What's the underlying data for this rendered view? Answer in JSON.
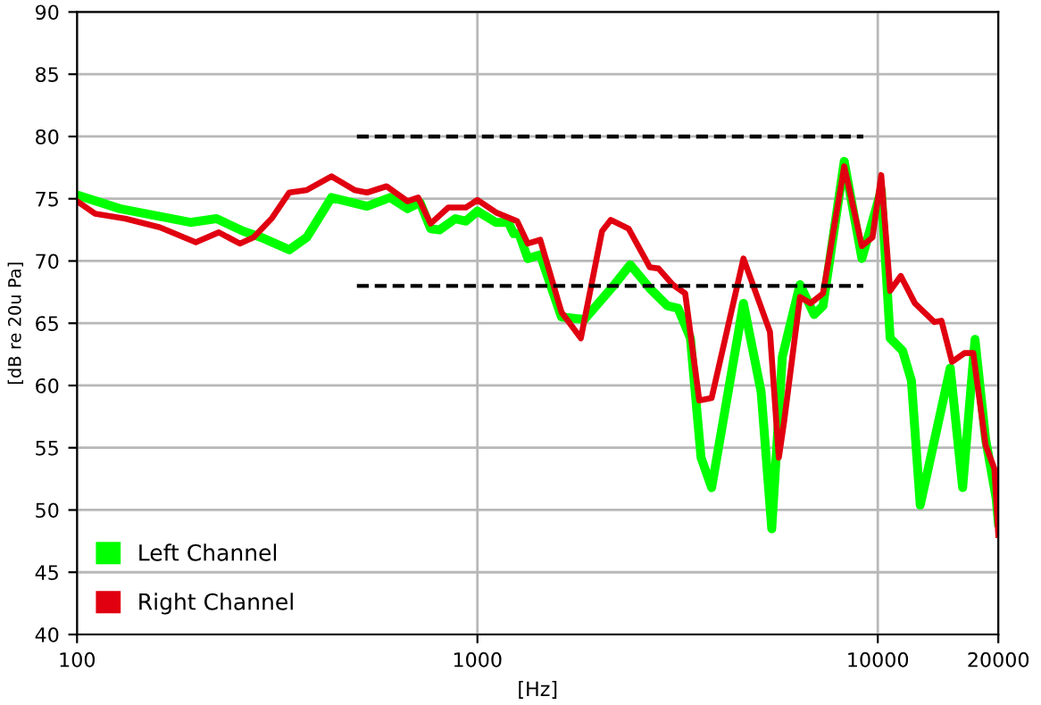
{
  "chart_data": {
    "type": "line",
    "xlabel": "[Hz]",
    "ylabel": "[dB re 20u Pa]",
    "log": "x",
    "xlim": [
      100,
      20000
    ],
    "xticks": [
      100,
      1000,
      10000,
      20000
    ],
    "ylim": [
      40,
      90
    ],
    "yticks": [
      40,
      45,
      50,
      55,
      60,
      65,
      70,
      75,
      80,
      85,
      90
    ],
    "grid": true,
    "legend": "bottom left",
    "series": [
      {
        "name": "Left Channel",
        "color": "#00ff00",
        "x": [
          100,
          128,
          192,
          223,
          260,
          288,
          339,
          375,
          432,
          530,
          605,
          669,
          719,
          764,
          804,
          881,
          936,
          1000,
          1113,
          1147,
          1195,
          1232,
          1270,
          1336,
          1435,
          1621,
          1850,
          2199,
          2409,
          2695,
          2983,
          3170,
          3404,
          3619,
          3846,
          4618,
          5112,
          5434,
          5775,
          6393,
          6934,
          7298,
          8245,
          9127,
          10200,
          10737,
          11530,
          12132,
          12764,
          15170,
          16290,
          17490,
          18590,
          19760,
          20000
        ],
        "values": [
          75.3,
          74.2,
          73.1,
          73.4,
          72.4,
          71.9,
          70.9,
          71.9,
          75.1,
          74.4,
          75.1,
          74.2,
          74.7,
          72.6,
          72.5,
          73.4,
          73.2,
          74.0,
          73.1,
          73.1,
          73.1,
          72.2,
          72.2,
          70.2,
          70.5,
          65.5,
          65.3,
          68.1,
          69.7,
          67.8,
          66.4,
          66.2,
          63.8,
          54.2,
          51.8,
          66.6,
          59.5,
          48.5,
          62.3,
          68.1,
          65.7,
          66.4,
          78.0,
          70.2,
          75.7,
          63.8,
          62.8,
          60.4,
          50.4,
          61.4,
          51.8,
          63.7,
          55.7,
          50.9,
          49.0
        ]
      },
      {
        "name": "Right Channel",
        "color": "#e00010",
        "x": [
          100,
          111,
          132,
          161,
          198,
          226,
          255,
          276,
          306,
          339,
          375,
          432,
          493,
          530,
          593,
          669,
          711,
          764,
          846,
          936,
          1000,
          1113,
          1257,
          1336,
          1435,
          1621,
          1813,
          2048,
          2154,
          2385,
          2695,
          2834,
          3075,
          3303,
          3582,
          3846,
          4618,
          5379,
          5660,
          5834,
          6393,
          6795,
          7298,
          8245,
          9127,
          9700,
          10200,
          10737,
          11413,
          12380,
          13847,
          14420,
          15325,
          16455,
          17315,
          18590,
          19560,
          20000
        ],
        "values": [
          74.8,
          73.8,
          73.4,
          72.7,
          71.5,
          72.3,
          71.4,
          71.9,
          73.4,
          75.5,
          75.7,
          76.8,
          75.7,
          75.5,
          76.0,
          74.8,
          75.1,
          73.0,
          74.3,
          74.3,
          74.9,
          73.9,
          73.2,
          71.4,
          71.7,
          65.9,
          63.8,
          72.4,
          73.3,
          72.6,
          69.5,
          69.4,
          68.1,
          67.4,
          58.8,
          59.0,
          70.2,
          64.3,
          54.2,
          57.1,
          67.1,
          66.6,
          67.4,
          77.6,
          71.2,
          71.9,
          76.9,
          67.6,
          68.8,
          66.6,
          65.1,
          65.2,
          61.9,
          62.6,
          62.6,
          55.2,
          53.3,
          48.0
        ]
      },
      {
        "color": "#000000",
        "line_style": "dashed",
        "x": [
          500,
          9200
        ],
        "values": [
          80,
          80
        ]
      },
      {
        "color": "#000000",
        "line_style": "dashed",
        "x": [
          500,
          9200
        ],
        "values": [
          68,
          68
        ]
      }
    ]
  }
}
